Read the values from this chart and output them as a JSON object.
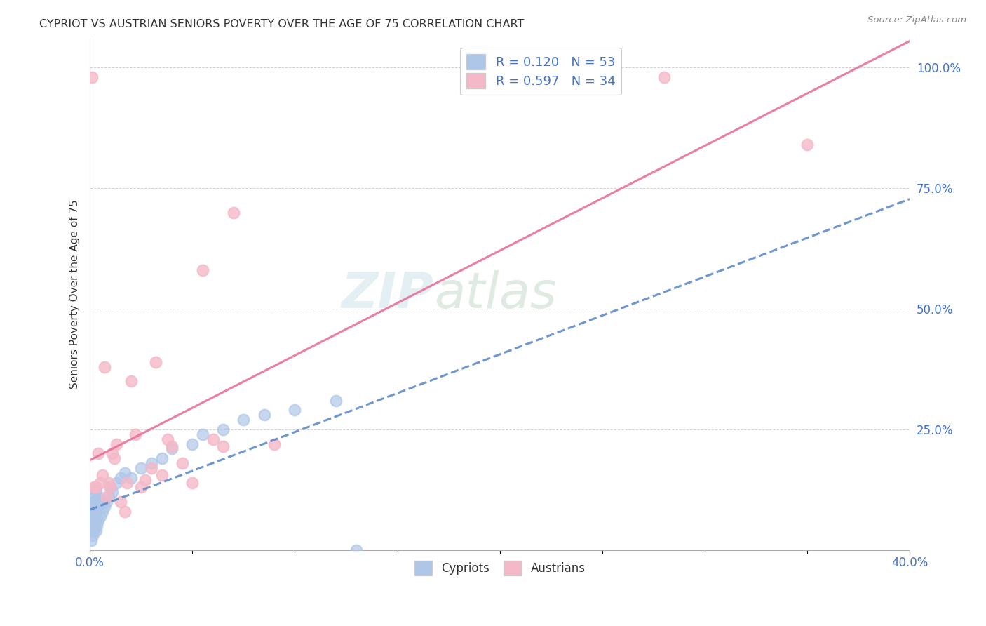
{
  "title": "CYPRIOT VS AUSTRIAN SENIORS POVERTY OVER THE AGE OF 75 CORRELATION CHART",
  "source": "Source: ZipAtlas.com",
  "ylabel_label": "Seniors Poverty Over the Age of 75",
  "xmin": 0.0,
  "xmax": 0.4,
  "ymin": 0.0,
  "ymax": 1.06,
  "cypriot_color": "#aec6e8",
  "austrian_color": "#f4b8c8",
  "cypriot_line_color": "#5585c8",
  "austrian_line_color": "#e87099",
  "watermark_zip": "ZIP",
  "watermark_atlas": "atlas",
  "background_color": "#ffffff",
  "grid_color": "#cccccc",
  "tick_color": "#4472c4",
  "title_color": "#333333",
  "cypriot_x": [
    0.0005,
    0.0005,
    0.0008,
    0.001,
    0.001,
    0.001,
    0.0012,
    0.0012,
    0.0015,
    0.0015,
    0.0015,
    0.0018,
    0.002,
    0.002,
    0.002,
    0.002,
    0.0022,
    0.0022,
    0.0025,
    0.0025,
    0.003,
    0.003,
    0.003,
    0.003,
    0.0035,
    0.0035,
    0.004,
    0.004,
    0.004,
    0.005,
    0.005,
    0.006,
    0.007,
    0.008,
    0.009,
    0.01,
    0.011,
    0.013,
    0.015,
    0.017,
    0.02,
    0.025,
    0.03,
    0.035,
    0.04,
    0.05,
    0.055,
    0.065,
    0.075,
    0.085,
    0.1,
    0.12,
    0.13
  ],
  "cypriot_y": [
    0.02,
    0.05,
    0.06,
    0.04,
    0.07,
    0.09,
    0.03,
    0.08,
    0.05,
    0.07,
    0.1,
    0.06,
    0.04,
    0.07,
    0.09,
    0.11,
    0.05,
    0.08,
    0.06,
    0.1,
    0.04,
    0.07,
    0.09,
    0.12,
    0.05,
    0.08,
    0.06,
    0.09,
    0.11,
    0.07,
    0.1,
    0.08,
    0.09,
    0.1,
    0.11,
    0.13,
    0.12,
    0.14,
    0.15,
    0.16,
    0.15,
    0.17,
    0.18,
    0.19,
    0.21,
    0.22,
    0.24,
    0.25,
    0.27,
    0.28,
    0.29,
    0.31,
    0.0
  ],
  "austrian_x": [
    0.001,
    0.002,
    0.003,
    0.004,
    0.005,
    0.006,
    0.007,
    0.008,
    0.009,
    0.01,
    0.011,
    0.012,
    0.013,
    0.015,
    0.017,
    0.018,
    0.02,
    0.022,
    0.025,
    0.027,
    0.03,
    0.032,
    0.035,
    0.038,
    0.04,
    0.045,
    0.05,
    0.055,
    0.06,
    0.065,
    0.07,
    0.09,
    0.28,
    0.35
  ],
  "austrian_y": [
    0.98,
    0.13,
    0.13,
    0.2,
    0.14,
    0.155,
    0.38,
    0.11,
    0.14,
    0.13,
    0.2,
    0.19,
    0.22,
    0.1,
    0.08,
    0.14,
    0.35,
    0.24,
    0.13,
    0.145,
    0.17,
    0.39,
    0.155,
    0.23,
    0.215,
    0.18,
    0.14,
    0.58,
    0.23,
    0.215,
    0.7,
    0.22,
    0.98,
    0.84
  ]
}
